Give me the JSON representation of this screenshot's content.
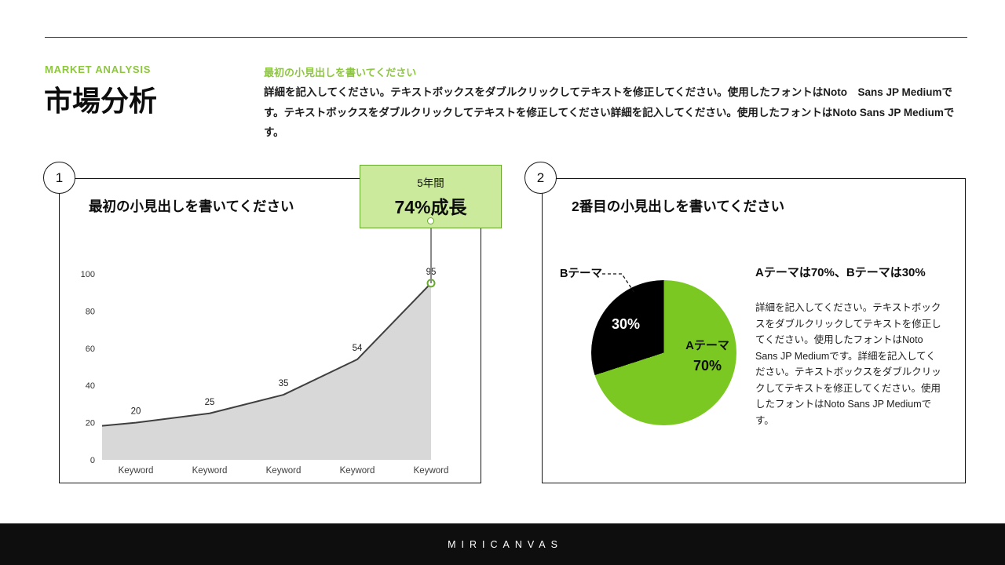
{
  "colors": {
    "accent": "#8DC63F",
    "accent_dark": "#69A92F",
    "callout_bg": "#CBEA9B",
    "pie_green": "#7CC823",
    "pie_black": "#000000",
    "area_fill": "#D8D8D8",
    "line": "#3F3F3F",
    "footer_bg": "#0E0E0E"
  },
  "header": {
    "kicker": "MARKET ANALYSIS",
    "title": "市場分析",
    "subheading": "最初の小見出しを書いてください",
    "body": "詳細を記入してください。テキストボックスをダブルクリックしてテキストを修正してください。使用したフォントはNoto　Sans JP Mediumです。テキストボックスをダブルクリックしてテキストを修正してください詳細を記入してください。使用したフォントはNoto Sans JP Mediumです。"
  },
  "left_panel": {
    "number": "1",
    "title": "最初の小見出しを書いてください",
    "callout": {
      "line1": "5年間",
      "line2": "74%成長"
    }
  },
  "right_panel": {
    "number": "2",
    "title": "2番目の小見出しを書いてください",
    "pie": {
      "label_b": "Bテーマ",
      "value_b": "30%",
      "label_a": "Aテーマ",
      "value_a": "70%"
    },
    "heading": "Aテーマは70%、Bテーマは30%",
    "body": "詳細を記入してください。テキストボックスをダブルクリックしてテキストを修正してください。使用したフォントはNoto Sans JP Mediumです。詳細を記入してください。テキストボックスをダブルクリックしてテキストを修正してください。使用したフォントはNoto Sans JP Mediumです。"
  },
  "footer": {
    "brand": "MIRICANVAS"
  },
  "chart_data": [
    {
      "type": "area",
      "title": "最初の小見出しを書いてください",
      "categories": [
        "Keyword",
        "Keyword",
        "Keyword",
        "Keyword",
        "Keyword"
      ],
      "values": [
        20,
        25,
        35,
        54,
        95
      ],
      "yticks": [
        0,
        20,
        40,
        60,
        80,
        100
      ],
      "ylim": [
        0,
        100
      ],
      "annotation": "5年間 74%成長",
      "legend_position": "none",
      "grid": false
    },
    {
      "type": "pie",
      "title": "2番目の小見出しを書いてください",
      "slices": [
        {
          "label": "Aテーマ",
          "value": 70
        },
        {
          "label": "Bテーマ",
          "value": 30
        }
      ],
      "colors": [
        "#7CC823",
        "#000000"
      ]
    }
  ]
}
